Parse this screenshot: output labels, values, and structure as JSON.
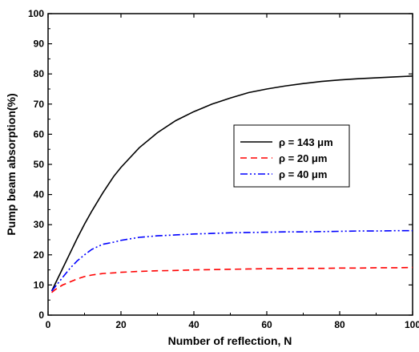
{
  "chart_data": {
    "type": "line",
    "xlabel": "Number of reflection, N",
    "ylabel": "Pump beam absorption(%)",
    "xlim": [
      0,
      100
    ],
    "ylim": [
      0,
      100
    ],
    "xticks": [
      0,
      20,
      40,
      60,
      80,
      100
    ],
    "yticks": [
      0,
      10,
      20,
      30,
      40,
      50,
      60,
      70,
      80,
      90,
      100
    ],
    "grid": false,
    "legend_position": "center-right",
    "x": [
      1,
      2,
      4,
      6,
      8,
      10,
      12,
      15,
      18,
      20,
      25,
      30,
      35,
      40,
      45,
      50,
      55,
      60,
      65,
      70,
      75,
      80,
      85,
      90,
      95,
      100
    ],
    "series": [
      {
        "name": "ρ = 143 μm",
        "color": "#000000",
        "dash": "solid",
        "values": [
          8.0,
          10.5,
          15.5,
          20.5,
          25.5,
          30.2,
          34.5,
          40.5,
          46.0,
          49.0,
          55.5,
          60.5,
          64.5,
          67.5,
          70.0,
          72.0,
          73.8,
          75.0,
          76.0,
          76.8,
          77.5,
          78.0,
          78.4,
          78.7,
          79.0,
          79.3
        ]
      },
      {
        "name": "ρ = 20 μm",
        "color": "#ff0000",
        "dash": "dash",
        "values": [
          7.5,
          8.5,
          10.0,
          11.0,
          12.0,
          12.8,
          13.3,
          13.8,
          14.0,
          14.2,
          14.5,
          14.7,
          14.8,
          15.0,
          15.1,
          15.2,
          15.3,
          15.4,
          15.4,
          15.5,
          15.5,
          15.6,
          15.6,
          15.7,
          15.7,
          15.8
        ]
      },
      {
        "name": "ρ = 40 μm",
        "color": "#0000ff",
        "dash": "dashdotdot",
        "values": [
          8.0,
          9.5,
          12.5,
          15.5,
          18.0,
          20.0,
          21.8,
          23.5,
          24.2,
          24.8,
          25.8,
          26.3,
          26.6,
          26.9,
          27.1,
          27.3,
          27.4,
          27.5,
          27.6,
          27.6,
          27.7,
          27.8,
          27.9,
          27.9,
          28.0,
          28.0
        ]
      }
    ]
  }
}
